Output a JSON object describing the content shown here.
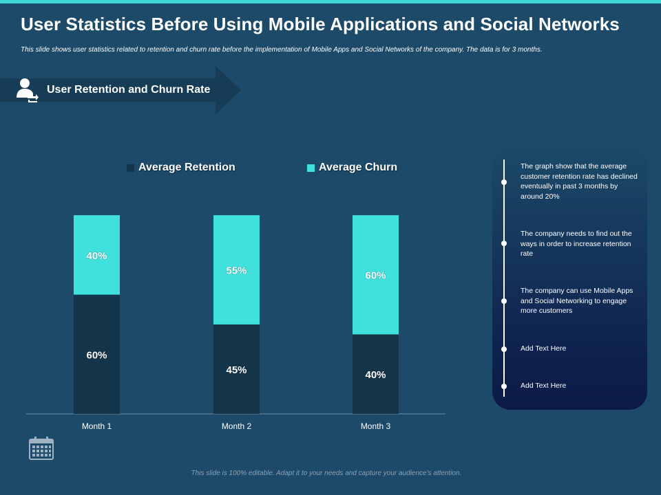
{
  "slide": {
    "title": "User Statistics Before Using Mobile Applications and Social Networks",
    "subtitle": "This slide shows user statistics related to retention and churn rate before the implementation of Mobile Apps and Social Networks of the company. The data is for 3 months.",
    "banner_label": "User Retention and Churn Rate",
    "footer": "This slide is 100% editable. Adapt it to your needs and capture your audience's attention."
  },
  "colors": {
    "background": "#1c4a68",
    "retention": "#133449",
    "churn": "#40e0dc",
    "accent": "#3fd6d6"
  },
  "chart_data": {
    "type": "bar",
    "stacked": true,
    "categories": [
      "Month 1",
      "Month 2",
      "Month 3"
    ],
    "series": [
      {
        "name": "Average Retention",
        "values": [
          60,
          45,
          40
        ],
        "labels": [
          "60%",
          "45%",
          "40%"
        ]
      },
      {
        "name": "Average Churn",
        "values": [
          40,
          55,
          60
        ],
        "labels": [
          "40%",
          "55%",
          "60%"
        ]
      }
    ],
    "ylim": [
      0,
      100
    ],
    "legend_position": "top",
    "grid": false
  },
  "notes": [
    "The graph show that the average customer retention rate has declined eventually in past 3 months by around 20%",
    "The company needs to find out the ways in order to increase retention rate",
    "The company can use Mobile Apps and Social Networking to engage more customers",
    "Add Text Here",
    "Add Text Here"
  ],
  "icons": {
    "banner": "user-refresh-icon",
    "calendar": "calendar-icon"
  }
}
